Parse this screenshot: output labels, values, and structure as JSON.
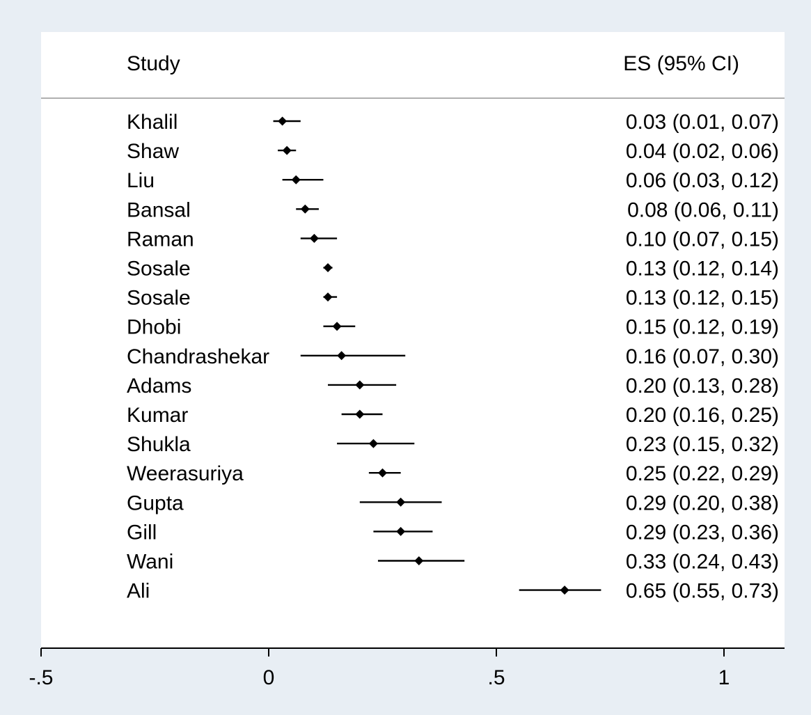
{
  "chart_data": {
    "type": "forest",
    "column_headers": {
      "study": "Study",
      "effect": "ES (95% CI)"
    },
    "studies": [
      {
        "name": "Khalil",
        "es": 0.03,
        "lo": 0.01,
        "hi": 0.07,
        "label": "0.03 (0.01, 0.07)"
      },
      {
        "name": "Shaw",
        "es": 0.04,
        "lo": 0.02,
        "hi": 0.06,
        "label": "0.04 (0.02, 0.06)"
      },
      {
        "name": "Liu",
        "es": 0.06,
        "lo": 0.03,
        "hi": 0.12,
        "label": "0.06 (0.03, 0.12)"
      },
      {
        "name": "Bansal",
        "es": 0.08,
        "lo": 0.06,
        "hi": 0.11,
        "label": "0.08 (0.06, 0.11)"
      },
      {
        "name": "Raman",
        "es": 0.1,
        "lo": 0.07,
        "hi": 0.15,
        "label": "0.10 (0.07, 0.15)"
      },
      {
        "name": "Sosale",
        "es": 0.13,
        "lo": 0.12,
        "hi": 0.14,
        "label": "0.13 (0.12, 0.14)"
      },
      {
        "name": "Sosale",
        "es": 0.13,
        "lo": 0.12,
        "hi": 0.15,
        "label": "0.13 (0.12, 0.15)"
      },
      {
        "name": "Dhobi",
        "es": 0.15,
        "lo": 0.12,
        "hi": 0.19,
        "label": "0.15 (0.12, 0.19)"
      },
      {
        "name": "Chandrashekar",
        "es": 0.16,
        "lo": 0.07,
        "hi": 0.3,
        "label": "0.16 (0.07, 0.30)"
      },
      {
        "name": "Adams",
        "es": 0.2,
        "lo": 0.13,
        "hi": 0.28,
        "label": "0.20 (0.13, 0.28)"
      },
      {
        "name": "Kumar",
        "es": 0.2,
        "lo": 0.16,
        "hi": 0.25,
        "label": "0.20 (0.16, 0.25)"
      },
      {
        "name": "Shukla",
        "es": 0.23,
        "lo": 0.15,
        "hi": 0.32,
        "label": "0.23 (0.15, 0.32)"
      },
      {
        "name": "Weerasuriya",
        "es": 0.25,
        "lo": 0.22,
        "hi": 0.29,
        "label": "0.25 (0.22, 0.29)"
      },
      {
        "name": "Gupta",
        "es": 0.29,
        "lo": 0.2,
        "hi": 0.38,
        "label": "0.29 (0.20, 0.38)"
      },
      {
        "name": "Gill",
        "es": 0.29,
        "lo": 0.23,
        "hi": 0.36,
        "label": "0.29 (0.23, 0.36)"
      },
      {
        "name": "Wani",
        "es": 0.33,
        "lo": 0.24,
        "hi": 0.43,
        "label": "0.33 (0.24, 0.43)"
      },
      {
        "name": "Ali",
        "es": 0.65,
        "lo": 0.55,
        "hi": 0.73,
        "label": "0.65 (0.55, 0.73)"
      }
    ],
    "x_axis": {
      "ticks": [
        -0.5,
        0,
        0.5,
        1
      ],
      "tick_labels": [
        "-.5",
        "0",
        ".5",
        "1"
      ]
    },
    "grid": false,
    "legend": "none"
  },
  "colors": {
    "outer_background": "#e8eef4",
    "plot_background": "#ffffff",
    "marks": "#000000",
    "header_rule": "#b0b0b0"
  }
}
